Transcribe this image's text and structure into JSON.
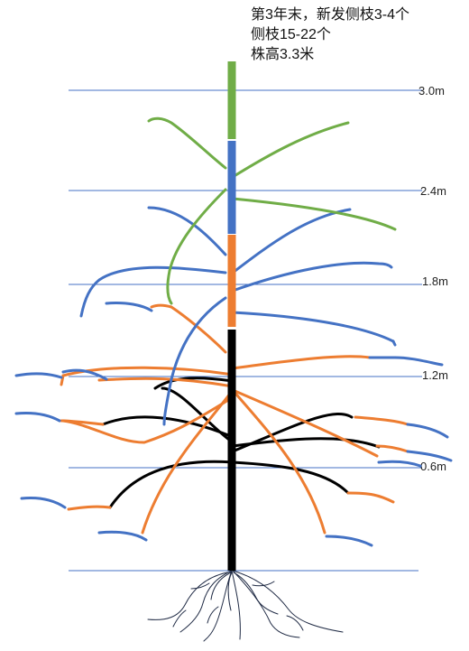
{
  "caption": {
    "line1": "第3年末，新发侧枝3-4个",
    "line2": "侧枝15-22个",
    "line3": "株高3.3米"
  },
  "height_marks": {
    "m30": "3.0m",
    "m24": "2.4m",
    "m18": "1.8m",
    "m12": "1.2m",
    "m06": "0.6m"
  },
  "colors": {
    "year1": "#000000",
    "year2": "#ED7D31",
    "year3_blue": "#4472C4",
    "year3_green": "#70AD47",
    "gridline": "#4472C4",
    "roots": "#1F2A44"
  }
}
